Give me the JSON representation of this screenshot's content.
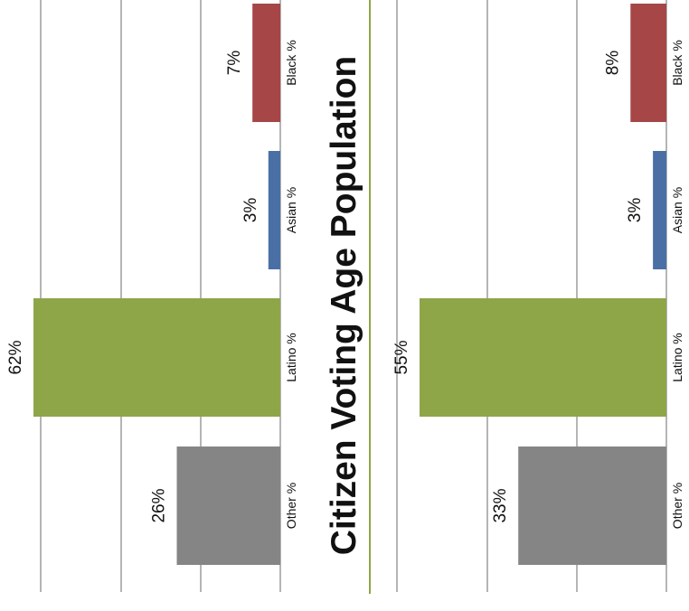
{
  "chart_data": [
    {
      "type": "bar",
      "orientation": "horizontal",
      "categories": [
        "Black %",
        "Asian %",
        "Latino %",
        "Other %"
      ],
      "values": [
        7,
        3,
        62,
        26
      ],
      "value_labels": [
        "7%",
        "3%",
        "62%",
        "26%"
      ],
      "colors": [
        "#a64646",
        "#4a6fa5",
        "#8ea548",
        "#858585"
      ],
      "xlim": [
        0,
        70
      ],
      "grid": true
    },
    {
      "type": "bar",
      "orientation": "horizontal",
      "categories": [
        "Black %",
        "Asian %",
        "Latino %",
        "Other %"
      ],
      "values": [
        8,
        3,
        55,
        33
      ],
      "value_labels": [
        "8%",
        "3%",
        "55%",
        "33%"
      ],
      "colors": [
        "#a64646",
        "#4a6fa5",
        "#8ea548",
        "#858585"
      ],
      "xlim": [
        0,
        70
      ],
      "grid": true
    }
  ],
  "title": "Citizen Voting Age Population",
  "rotation": "content rotated 90 degrees counter-clockwise",
  "colors": {
    "divider": "#8ea548",
    "grid": "#b5b5b5",
    "text": "#111111"
  }
}
